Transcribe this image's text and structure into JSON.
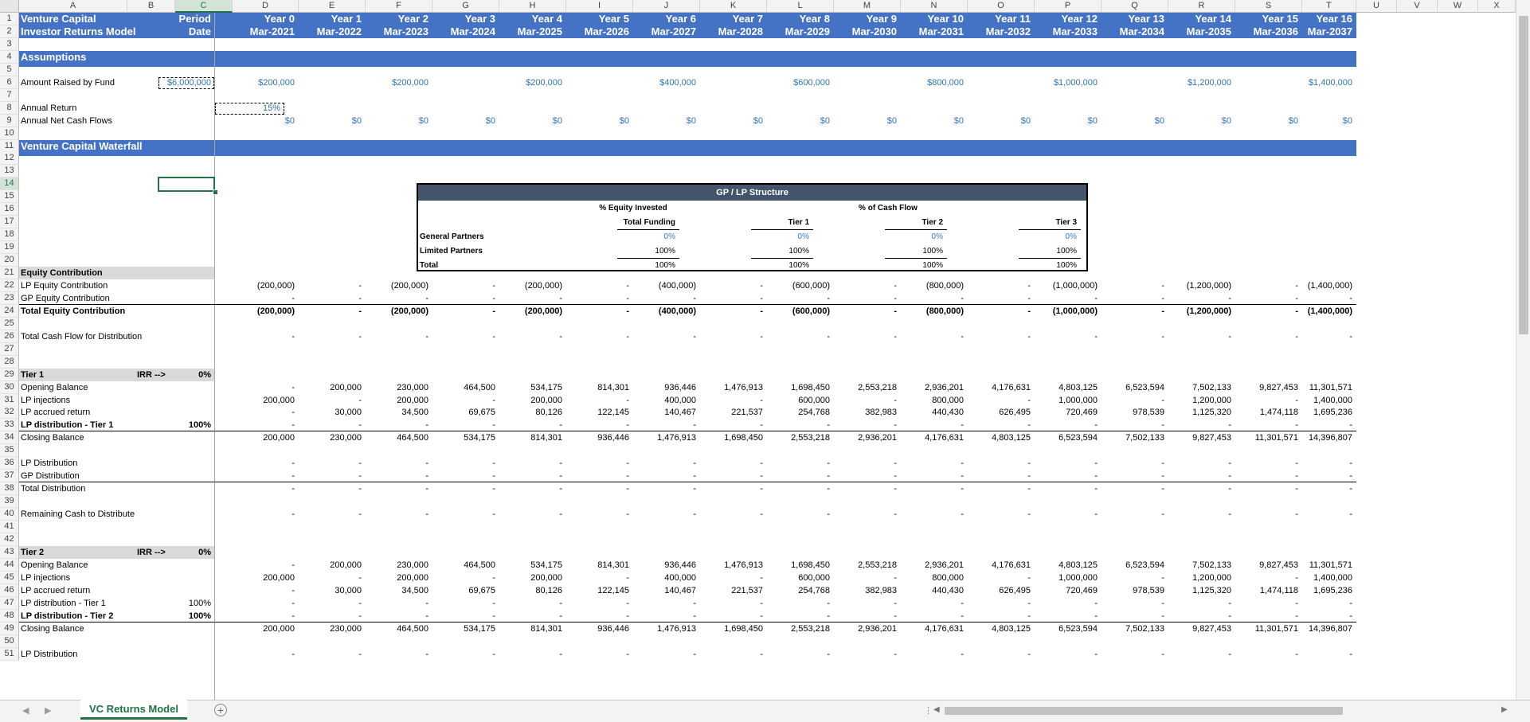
{
  "sheet": {
    "tab_name": "VC Returns Model",
    "col_letters": [
      "A",
      "B",
      "C",
      "D",
      "E",
      "F",
      "G",
      "H",
      "I",
      "J",
      "K",
      "L",
      "M",
      "N",
      "O",
      "P",
      "Q",
      "R",
      "S",
      "T",
      "U",
      "V",
      "W",
      "X"
    ],
    "row_numbers": [
      "1",
      "2",
      "3",
      "4",
      "5",
      "6",
      "7",
      "8",
      "9",
      "10",
      "11",
      "12",
      "13",
      "14",
      "15",
      "16",
      "17",
      "18",
      "19",
      "20",
      "21",
      "22",
      "23",
      "24",
      "25",
      "26",
      "27",
      "28",
      "29",
      "30",
      "31",
      "32",
      "33",
      "34",
      "35",
      "36",
      "37",
      "38",
      "39",
      "40",
      "41",
      "42",
      "43",
      "44",
      "45",
      "46",
      "47",
      "48",
      "49",
      "50",
      "51"
    ]
  },
  "header": {
    "title1": "Venture Capital",
    "title2": "Investor Returns Model",
    "period_label": "Period",
    "date_label": "Date",
    "years": [
      "Year 0",
      "Year 1",
      "Year 2",
      "Year 3",
      "Year 4",
      "Year 5",
      "Year 6",
      "Year 7",
      "Year 8",
      "Year 9",
      "Year 10",
      "Year 11",
      "Year 12",
      "Year 13",
      "Year 14",
      "Year 15",
      "Year 16"
    ],
    "dates": [
      "Mar-2021",
      "Mar-2022",
      "Mar-2023",
      "Mar-2024",
      "Mar-2025",
      "Mar-2026",
      "Mar-2027",
      "Mar-2028",
      "Mar-2029",
      "Mar-2030",
      "Mar-2031",
      "Mar-2032",
      "Mar-2033",
      "Mar-2034",
      "Mar-2035",
      "Mar-2036",
      "Mar-2037"
    ]
  },
  "assumptions": {
    "title": "Assumptions",
    "amount_raised_label": "Amount Raised by Fund",
    "amount_raised_total": "$6,000,000",
    "amount_raised": [
      "$200,000",
      "",
      "$200,000",
      "",
      "$200,000",
      "",
      "$400,000",
      "",
      "$600,000",
      "",
      "$800,000",
      "",
      "$1,000,000",
      "",
      "$1,200,000",
      "",
      "$1,400,000"
    ],
    "annual_return_label": "Annual Return",
    "annual_return": "15%",
    "net_cf_label": "Annual Net Cash Flows",
    "net_cf": [
      "$0",
      "$0",
      "$0",
      "$0",
      "$0",
      "$0",
      "$0",
      "$0",
      "$0",
      "$0",
      "$0",
      "$0",
      "$0",
      "$0",
      "$0",
      "$0",
      "$0"
    ]
  },
  "waterfall": {
    "title": "Venture Capital Waterfall"
  },
  "gplp": {
    "title": "GP / LP Structure",
    "equity_header": "% Equity Invested",
    "cf_header": "% of Cash Flow",
    "col_headers": [
      "Total Funding",
      "Tier 1",
      "Tier 2",
      "Tier 3"
    ],
    "rows": [
      {
        "label": "General Partners",
        "values": [
          "0%",
          "0%",
          "0%",
          "0%"
        ]
      },
      {
        "label": "Limited Partners",
        "values": [
          "100%",
          "100%",
          "100%",
          "100%"
        ]
      },
      {
        "label": "Total",
        "values": [
          "100%",
          "100%",
          "100%",
          "100%"
        ]
      }
    ]
  },
  "equity": {
    "title": "Equity Contribution",
    "lp_label": "LP Equity Contribution",
    "lp": [
      "(200,000)",
      "-",
      "(200,000)",
      "-",
      "(200,000)",
      "-",
      "(400,000)",
      "-",
      "(600,000)",
      "-",
      "(800,000)",
      "-",
      "(1,000,000)",
      "-",
      "(1,200,000)",
      "-",
      "(1,400,000)"
    ],
    "gp_label": "GP Equity Contribution",
    "gp": [
      "-",
      "-",
      "-",
      "-",
      "-",
      "-",
      "-",
      "-",
      "-",
      "-",
      "-",
      "-",
      "-",
      "-",
      "-",
      "-",
      "-"
    ],
    "total_label": "Total Equity Contribution",
    "total": [
      "(200,000)",
      "-",
      "(200,000)",
      "-",
      "(200,000)",
      "-",
      "(400,000)",
      "-",
      "(600,000)",
      "-",
      "(800,000)",
      "-",
      "(1,000,000)",
      "-",
      "(1,200,000)",
      "-",
      "(1,400,000)"
    ],
    "tcf_label": "Total Cash Flow for Distribution",
    "tcf": [
      "-",
      "-",
      "-",
      "-",
      "-",
      "-",
      "-",
      "-",
      "-",
      "-",
      "-",
      "-",
      "-",
      "-",
      "-",
      "-",
      "-"
    ]
  },
  "tier1": {
    "title": "Tier 1",
    "irr_label": "IRR -->",
    "irr": "0%",
    "opening_label": "Opening Balance",
    "opening": [
      "-",
      "200,000",
      "230,000",
      "464,500",
      "534,175",
      "814,301",
      "936,446",
      "1,476,913",
      "1,698,450",
      "2,553,218",
      "2,936,201",
      "4,176,631",
      "4,803,125",
      "6,523,594",
      "7,502,133",
      "9,827,453",
      "11,301,571"
    ],
    "inj_label": "LP injections",
    "inj": [
      "200,000",
      "-",
      "200,000",
      "-",
      "200,000",
      "-",
      "400,000",
      "-",
      "600,000",
      "-",
      "800,000",
      "-",
      "1,000,000",
      "-",
      "1,200,000",
      "-",
      "1,400,000"
    ],
    "accr_label": "LP accrued return",
    "accr": [
      "-",
      "30,000",
      "34,500",
      "69,675",
      "80,126",
      "122,145",
      "140,467",
      "221,537",
      "254,768",
      "382,983",
      "440,430",
      "626,495",
      "720,469",
      "978,539",
      "1,125,320",
      "1,474,118",
      "1,695,236"
    ],
    "dist_label": "LP distribution - Tier 1",
    "dist_pct": "100%",
    "dist": [
      "-",
      "-",
      "-",
      "-",
      "-",
      "-",
      "-",
      "-",
      "-",
      "-",
      "-",
      "-",
      "-",
      "-",
      "-",
      "-",
      "-"
    ],
    "closing_label": "Closing Balance",
    "closing": [
      "200,000",
      "230,000",
      "464,500",
      "534,175",
      "814,301",
      "936,446",
      "1,476,913",
      "1,698,450",
      "2,553,218",
      "2,936,201",
      "4,176,631",
      "4,803,125",
      "6,523,594",
      "7,502,133",
      "9,827,453",
      "11,301,571",
      "14,396,807"
    ],
    "lpd_label": "LP Distribution",
    "gpd_label": "GP Distribution",
    "td_label": "Total Distribution",
    "rem_label": "Remaining Cash to Distribute",
    "dashes": [
      "-",
      "-",
      "-",
      "-",
      "-",
      "-",
      "-",
      "-",
      "-",
      "-",
      "-",
      "-",
      "-",
      "-",
      "-",
      "-",
      "-"
    ]
  },
  "tier2": {
    "title": "Tier 2",
    "irr_label": "IRR -->",
    "irr": "0%",
    "opening_label": "Opening Balance",
    "inj_label": "LP injections",
    "accr_label": "LP accrued return",
    "d1_label": "LP distribution - Tier 1",
    "d1_pct": "100%",
    "d2_label": "LP distribution - Tier 2",
    "d2_pct": "100%",
    "closing_label": "Closing Balance",
    "lpd_label": "LP Distribution"
  }
}
